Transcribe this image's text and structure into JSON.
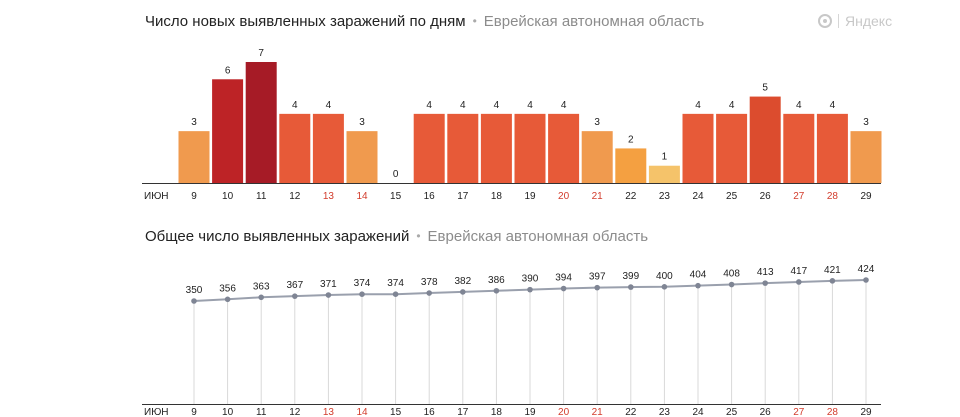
{
  "logo": {
    "text": "Яндекс",
    "icon": "yandex-logo-icon"
  },
  "charts": [
    {
      "type": "bar",
      "title": "Число новых выявленных заражений по дням",
      "region": "Еврейская автономная область",
      "month_label": "ИЮН",
      "categories": [
        "9",
        "10",
        "11",
        "12",
        "13",
        "14",
        "15",
        "16",
        "17",
        "18",
        "19",
        "20",
        "21",
        "22",
        "23",
        "24",
        "25",
        "26",
        "27",
        "28",
        "29"
      ],
      "weekend_categories": [
        "13",
        "14",
        "20",
        "21",
        "27",
        "28"
      ],
      "values": [
        3,
        6,
        7,
        4,
        4,
        3,
        0,
        4,
        4,
        4,
        4,
        4,
        3,
        2,
        1,
        4,
        4,
        5,
        4,
        4,
        3
      ],
      "data_labels": [
        "3",
        "6",
        "7",
        "4",
        "4",
        "3",
        "0",
        "4",
        "4",
        "4",
        "4",
        "4",
        "3",
        "2",
        "1",
        "4",
        "4",
        "5",
        "4",
        "4",
        "3"
      ],
      "ylim": [
        0,
        7
      ],
      "colors": {
        "1": "#f5c36a",
        "2": "#f4a041",
        "3": "#f09a4e",
        "4": "#e75a38",
        "5": "#dc4c2e",
        "6": "#bd2326",
        "7": "#a61b26"
      }
    },
    {
      "type": "line",
      "title": "Общее число выявленных заражений",
      "region": "Еврейская автономная область",
      "month_label": "ИЮН",
      "categories": [
        "9",
        "10",
        "11",
        "12",
        "13",
        "14",
        "15",
        "16",
        "17",
        "18",
        "19",
        "20",
        "21",
        "22",
        "23",
        "24",
        "25",
        "26",
        "27",
        "28",
        "29"
      ],
      "weekend_categories": [
        "13",
        "14",
        "20",
        "21",
        "27",
        "28"
      ],
      "values": [
        350,
        356,
        363,
        367,
        371,
        374,
        374,
        378,
        382,
        386,
        390,
        394,
        397,
        399,
        400,
        404,
        408,
        413,
        417,
        421,
        424
      ],
      "data_labels": [
        "350",
        "356",
        "363",
        "367",
        "371",
        "374",
        "374",
        "378",
        "382",
        "386",
        "390",
        "394",
        "397",
        "399",
        "400",
        "404",
        "408",
        "413",
        "417",
        "421",
        "424"
      ],
      "ylim": [
        0,
        424
      ],
      "line_color": "#9aa0ad"
    }
  ],
  "colors": {
    "axis": "#333333",
    "weekend": "#d23c2c",
    "text": "#222222",
    "muted": "#8c8c8c"
  }
}
